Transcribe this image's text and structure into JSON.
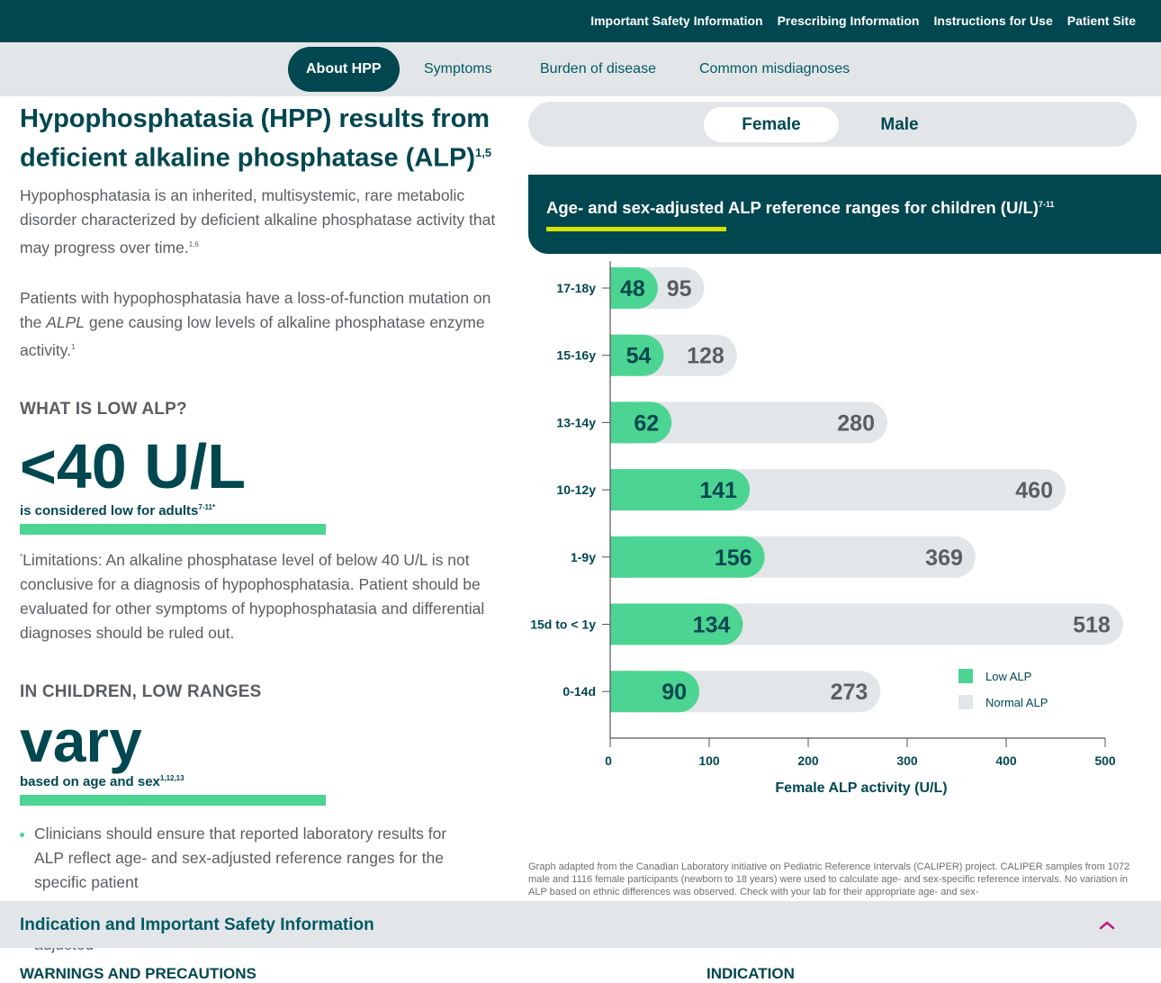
{
  "topnav": {
    "links": [
      "Important Safety Information",
      "Prescribing Information",
      "Instructions for Use",
      "Patient Site"
    ]
  },
  "subnav": {
    "tabs": [
      "About HPP",
      "Symptoms",
      "Burden of disease",
      "Common misdiagnoses"
    ],
    "active_tab": "About HPP"
  },
  "main": {
    "title": "Hypophosphatasia (HPP) results from deficient alkaline phosphatase (ALP)",
    "title_sup": "1,5",
    "para1": "Hypophosphatasia is an inherited, multisystemic, rare metabolic disorder characterized by deficient alkaline phosphatase activity that may progress over time.",
    "para1_sup": "1,6",
    "para2_a": "Patients with hypophosphatasia have a loss-of-function mutation on the ",
    "para2_gene": "ALPL",
    "para2_b": " gene causing low levels of alkaline phosphatase enzyme activity.",
    "para2_sup": "1",
    "what_is_low_heading": "WHAT IS LOW ALP?",
    "low_value": "<40 U/L",
    "low_caption": "is considered low for adults",
    "low_caption_sup": "7-11*",
    "limitations_mark": "*",
    "limitations": "Limitations: An alkaline phosphatase level of below 40 U/L is not conclusive for a diagnosis of hypophosphatasia. Patient should be evaluated for other symptoms of hypophosphatasia and differential diagnoses should be ruled out.",
    "children_heading": "IN CHILDREN, LOW RANGES",
    "vary_word": "vary",
    "vary_caption": "based on age and sex",
    "vary_caption_sup": "1,12,13",
    "bullets": [
      "Clinicians should ensure that reported laboratory results for ALP reflect age- and sex-adjusted reference ranges for the specific patient",
      "Check with your lab for their appropriate age- and sex-adjusted"
    ]
  },
  "toggle": {
    "options": [
      "Female",
      "Male"
    ],
    "selected": "Female"
  },
  "chart_header": {
    "title": "Age- and sex-adjusted ALP reference ranges for children (U/L)",
    "title_sup": "7-11"
  },
  "chart_data": {
    "type": "bar",
    "orientation": "horizontal",
    "categories": [
      "17-18y",
      "15-16y",
      "13-14y",
      "10-12y",
      "1-9y",
      "15d to < 1y",
      "0-14d"
    ],
    "series": [
      {
        "name": "Low ALP",
        "values": [
          48,
          54,
          62,
          141,
          156,
          134,
          90
        ],
        "color": "#4cd493"
      },
      {
        "name": "Normal ALP",
        "values": [
          95,
          128,
          280,
          460,
          369,
          518,
          273
        ],
        "color": "#e3e6e8"
      }
    ],
    "xlabel": "Female ALP activity (U/L)",
    "xlim": [
      0,
      500
    ],
    "xticks": [
      0,
      100,
      200,
      300,
      400,
      500
    ],
    "legend_position": "bottom-right",
    "grid": false
  },
  "footnote": "Graph adapted from the Canadian Laboratory initiative on Pediatric Reference Intervals (CALIPER) project. CALIPER samples from 1072 male and 1116 female participants (newborn to 18 years) were used to calculate age- and sex-specific reference intervals. No variation in ALP based on ethnic differences was observed. Check with your lab for their appropriate age- and sex-",
  "isi_bar": {
    "title": "Indication and Important Safety Information",
    "toggle_icon": "chevron-up-icon"
  },
  "bottom": {
    "warnings_heading": "WARNINGS AND PRECAUTIONS",
    "indication_heading": "INDICATION"
  },
  "colors": {
    "brand_dark": "#004750",
    "accent_green": "#4cd493",
    "accent_yellow": "#d6e200",
    "light_gray": "#e3e6e8",
    "chevron_pink": "#c0177f"
  }
}
